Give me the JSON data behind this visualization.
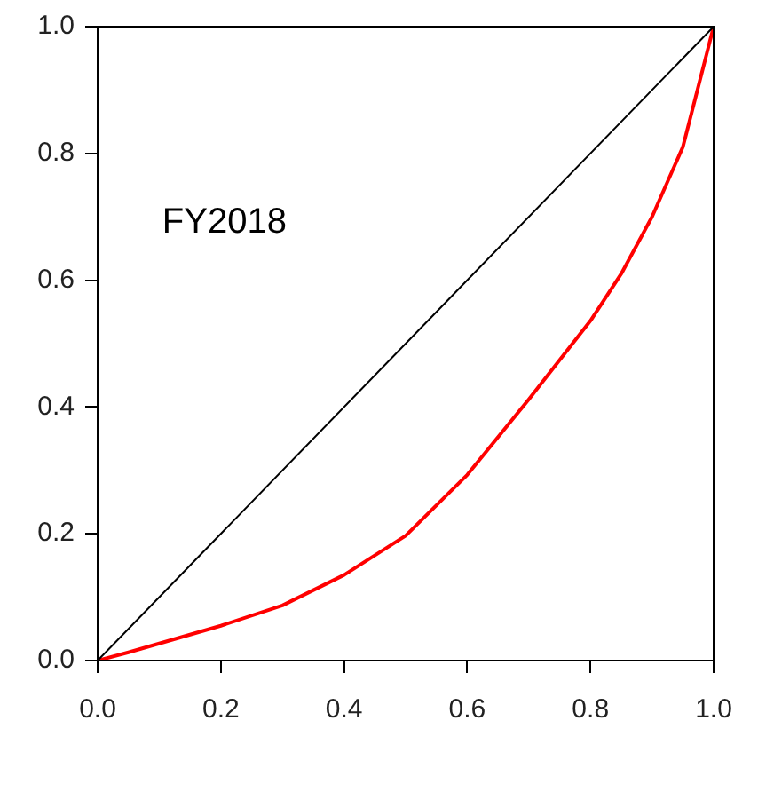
{
  "chart_data": {
    "type": "line",
    "annotations": [
      "FY2018"
    ],
    "xlim": [
      0,
      1
    ],
    "ylim": [
      0,
      1
    ],
    "xticks": [
      {
        "value": 0,
        "label": "0.0"
      },
      {
        "value": 0.2,
        "label": "0.2"
      },
      {
        "value": 0.4,
        "label": "0.4"
      },
      {
        "value": 0.6,
        "label": "0.6"
      },
      {
        "value": 0.8,
        "label": "0.8"
      },
      {
        "value": 1,
        "label": "1.0"
      }
    ],
    "yticks": [
      {
        "value": 0,
        "label": "0.0"
      },
      {
        "value": 0.2,
        "label": "0.2"
      },
      {
        "value": 0.4,
        "label": "0.4"
      },
      {
        "value": 0.6,
        "label": "0.6"
      },
      {
        "value": 0.8,
        "label": "0.8"
      },
      {
        "value": 1,
        "label": "1.0"
      }
    ],
    "grid": false,
    "legend": false,
    "marker": "none",
    "series": [
      {
        "color": "#000000",
        "x": [
          0,
          1
        ],
        "values": [
          0,
          1
        ]
      },
      {
        "color": "#ff0000",
        "x": [
          0,
          0.05,
          0.1,
          0.2,
          0.3,
          0.4,
          0.5,
          0.6,
          0.7,
          0.8,
          0.85,
          0.9,
          0.95,
          1
        ],
        "values": [
          0,
          0.013,
          0.027,
          0.055,
          0.087,
          0.135,
          0.197,
          0.293,
          0.412,
          0.536,
          0.61,
          0.7,
          0.81,
          1
        ]
      }
    ]
  }
}
